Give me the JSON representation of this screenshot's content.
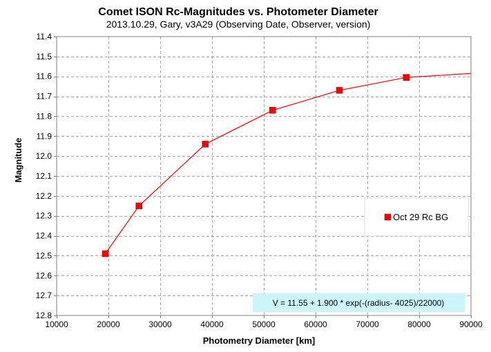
{
  "chart_data": {
    "type": "scatter",
    "title": "Comet ISON Rc-Magnitudes  vs.  Photometer Diameter",
    "subtitle": "2013.10.29,  Gary,  v3A29 (Observing Date, Observer, version)",
    "xlabel": "Photometry Diameter  [km]",
    "ylabel": "Magnitude",
    "xlim": [
      10000,
      90000
    ],
    "ylim": [
      11.4,
      12.8
    ],
    "y_inverted": true,
    "grid": true,
    "x_ticks": [
      10000,
      20000,
      30000,
      40000,
      50000,
      60000,
      70000,
      80000,
      90000
    ],
    "y_ticks": [
      11.4,
      11.5,
      11.6,
      11.7,
      11.8,
      11.9,
      12.0,
      12.1,
      12.2,
      12.3,
      12.4,
      12.5,
      12.6,
      12.7,
      12.8
    ],
    "series": [
      {
        "name": "Oct 29 Rc BG",
        "marker": "square",
        "color": "#ff0000",
        "x": [
          19400,
          25900,
          38700,
          51700,
          64600,
          77500
        ],
        "y": [
          12.49,
          12.25,
          11.94,
          11.77,
          11.67,
          11.605
        ]
      }
    ],
    "fit_line": {
      "color": "#ff0000",
      "x": [
        19400,
        25900,
        38700,
        51700,
        64600,
        77500,
        90000
      ],
      "y": [
        12.49,
        12.25,
        11.94,
        11.77,
        11.67,
        11.605,
        11.585
      ]
    },
    "legend": {
      "placement": "right",
      "label": "Oct 29 Rc BG"
    },
    "annotation": {
      "text": "V = 11.55 + 1.900 * exp(-(radius- 4025)/22000)",
      "background": "#ccf5fa"
    }
  },
  "colors": {
    "grid": "#a6a6a6",
    "axis": "#808080",
    "series": "#ff0000"
  }
}
